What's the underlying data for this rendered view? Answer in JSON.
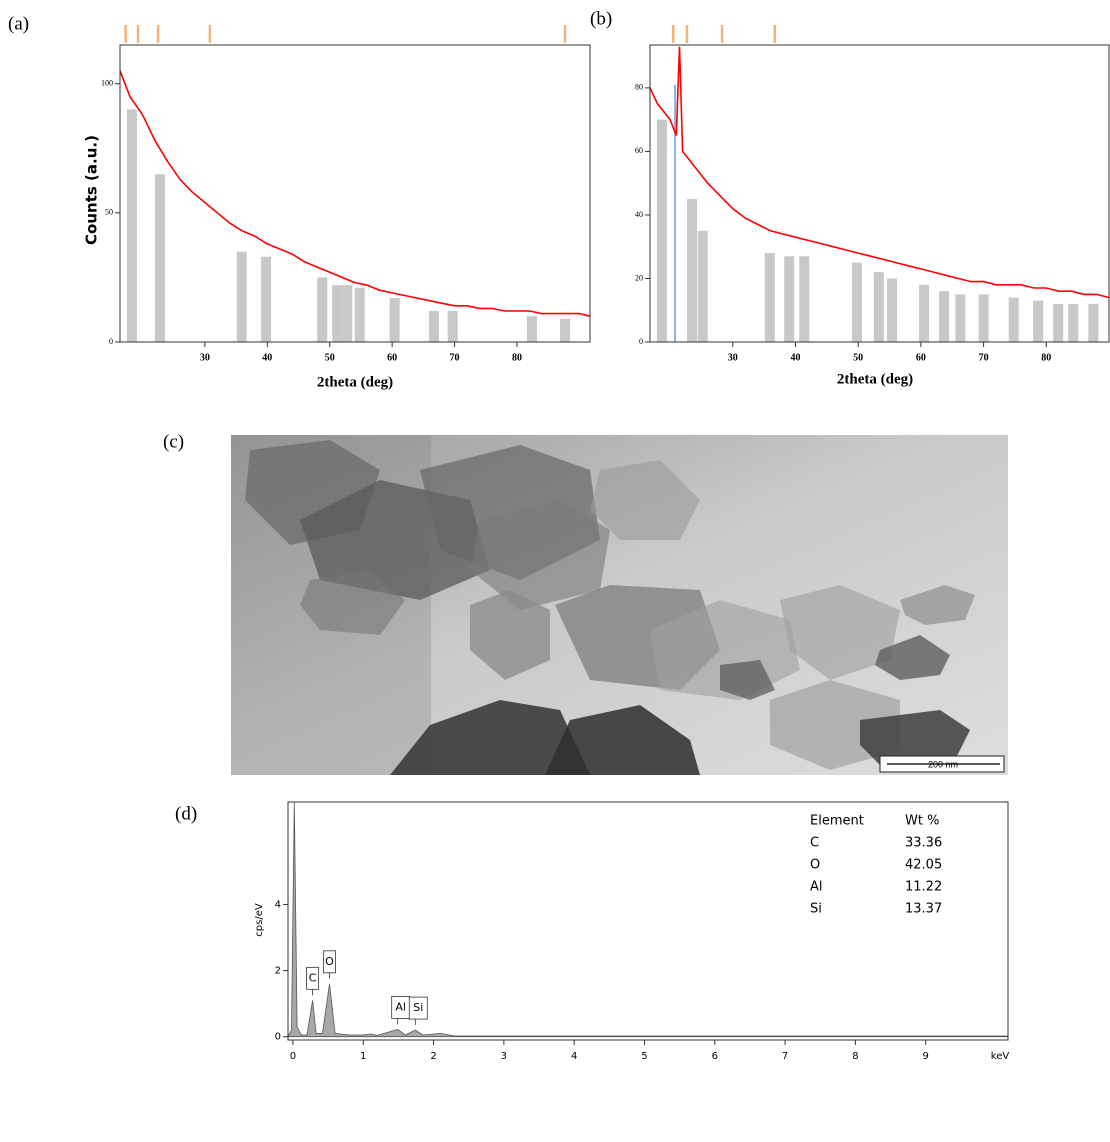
{
  "chart_data": [
    {
      "type": "line",
      "label": "(a)",
      "x_label": "2theta (deg)",
      "y_label": "Counts (a.u.)",
      "xlim": [
        16.4,
        91.7
      ],
      "ylim": [
        0,
        115
      ],
      "xticks": [
        30,
        40,
        50,
        60,
        70,
        80
      ],
      "yticks": [
        0,
        50,
        100
      ],
      "x": [
        16.4,
        18,
        20,
        22,
        24,
        26,
        28,
        30,
        32,
        34,
        36,
        38,
        40,
        42,
        44,
        46,
        48,
        50,
        52,
        54,
        56,
        58,
        60,
        62,
        64,
        66,
        68,
        70,
        72,
        74,
        76,
        78,
        80,
        82,
        84,
        86,
        88,
        90,
        91.7
      ],
      "values": [
        105,
        95,
        88,
        78,
        70,
        63,
        58,
        54,
        50,
        46,
        43,
        41,
        38,
        36,
        34,
        31,
        29,
        27,
        25,
        23,
        22,
        20,
        19,
        18,
        17,
        16,
        15,
        14,
        14,
        13,
        13,
        12,
        12,
        12,
        11,
        11,
        11,
        11,
        10
      ],
      "color": "#ff0000",
      "reference_peaks": {
        "x": [
          18.3,
          22.8,
          35.9,
          39.8,
          48.8,
          51.2,
          52.8,
          54.8,
          60.4,
          66.7,
          69.7,
          82.4,
          87.7
        ],
        "values": [
          90,
          65,
          35,
          33,
          25,
          22,
          22,
          21,
          17,
          12,
          12,
          10,
          9
        ],
        "color": "#c8c8c8"
      },
      "top_markers": {
        "x": [
          17.3,
          19.3,
          22.5,
          30.8,
          87.7
        ],
        "color": "#f5b27a"
      }
    },
    {
      "type": "line",
      "label": "(b)",
      "x_label": "2theta (deg)",
      "xlim": [
        16.8,
        90
      ],
      "ylim": [
        0,
        93.5
      ],
      "xticks": [
        30,
        40,
        50,
        60,
        70,
        80
      ],
      "yticks": [
        0,
        20,
        40,
        60,
        80
      ],
      "x": [
        16.8,
        18,
        20,
        21,
        21.5,
        22,
        24,
        26,
        28,
        30,
        32,
        34,
        36,
        38,
        40,
        42,
        44,
        46,
        48,
        50,
        52,
        54,
        56,
        58,
        60,
        62,
        64,
        66,
        68,
        70,
        72,
        74,
        76,
        78,
        80,
        82,
        84,
        86,
        88,
        90
      ],
      "values": [
        80,
        75,
        70,
        65,
        93,
        60,
        55,
        50,
        46,
        42,
        39,
        37,
        35,
        34,
        33,
        32,
        31,
        30,
        29,
        28,
        27,
        26,
        25,
        24,
        23,
        22,
        21,
        20,
        19,
        19,
        18,
        18,
        18,
        17,
        17,
        16,
        16,
        15,
        15,
        14
      ],
      "color": "#ff0000",
      "reference_peaks": {
        "x": [
          18.7,
          23.5,
          25.2,
          35.9,
          39.0,
          41.4,
          49.8,
          53.3,
          55.4,
          60.5,
          63.7,
          66.3,
          70.0,
          74.8,
          78.7,
          81.9,
          84.3,
          87.5
        ],
        "values": [
          70,
          45,
          35,
          28,
          27,
          27,
          25,
          22,
          20,
          18,
          16,
          15,
          15,
          14,
          13,
          12,
          12,
          12
        ],
        "color": "#c8c8c8"
      },
      "highlight": {
        "x": 20.8,
        "color": "#8ab4e8"
      },
      "top_markers": {
        "x": [
          20.5,
          22.7,
          28.3,
          36.7
        ],
        "color": "#f5b27a"
      }
    },
    {
      "type": "area",
      "label": "(d)",
      "x_label": "keV",
      "y_label": "cps/eV",
      "xlim": [
        -0.07,
        10.17
      ],
      "ylim": [
        -0.1,
        7.1
      ],
      "xticks": [
        0,
        1,
        2,
        3,
        4,
        5,
        6,
        7,
        8,
        9
      ],
      "yticks": [
        0,
        2,
        4
      ],
      "x": [
        -0.07,
        -0.02,
        0.02,
        0.06,
        0.12,
        0.2,
        0.28,
        0.33,
        0.42,
        0.52,
        0.6,
        0.8,
        1.0,
        1.1,
        1.2,
        1.49,
        1.6,
        1.74,
        1.85,
        2.1,
        2.3,
        3,
        10.17
      ],
      "values": [
        0,
        0.2,
        7.1,
        0.3,
        0.05,
        0.05,
        1.1,
        0.1,
        0.1,
        1.6,
        0.1,
        0.05,
        0.05,
        0.08,
        0.04,
        0.22,
        0.05,
        0.2,
        0.05,
        0.1,
        0.02,
        0.02,
        0.02
      ],
      "color": "#a8a8a8",
      "peak_labels": [
        {
          "label": "C",
          "x": 0.28,
          "value": 1.1
        },
        {
          "label": "O",
          "x": 0.52,
          "value": 1.6
        },
        {
          "label": "Al",
          "x": 1.49,
          "value": 0.22
        },
        {
          "label": "Si",
          "x": 1.74,
          "value": 0.2
        }
      ],
      "table": {
        "header": [
          "Element",
          "Wt %"
        ],
        "rows": [
          [
            "C",
            33.36
          ],
          [
            "O",
            42.05
          ],
          [
            "Al",
            11.22
          ],
          [
            "Si",
            13.37
          ]
        ]
      }
    }
  ],
  "image": {
    "label": "(c)",
    "scale_bar": "200 nm"
  }
}
